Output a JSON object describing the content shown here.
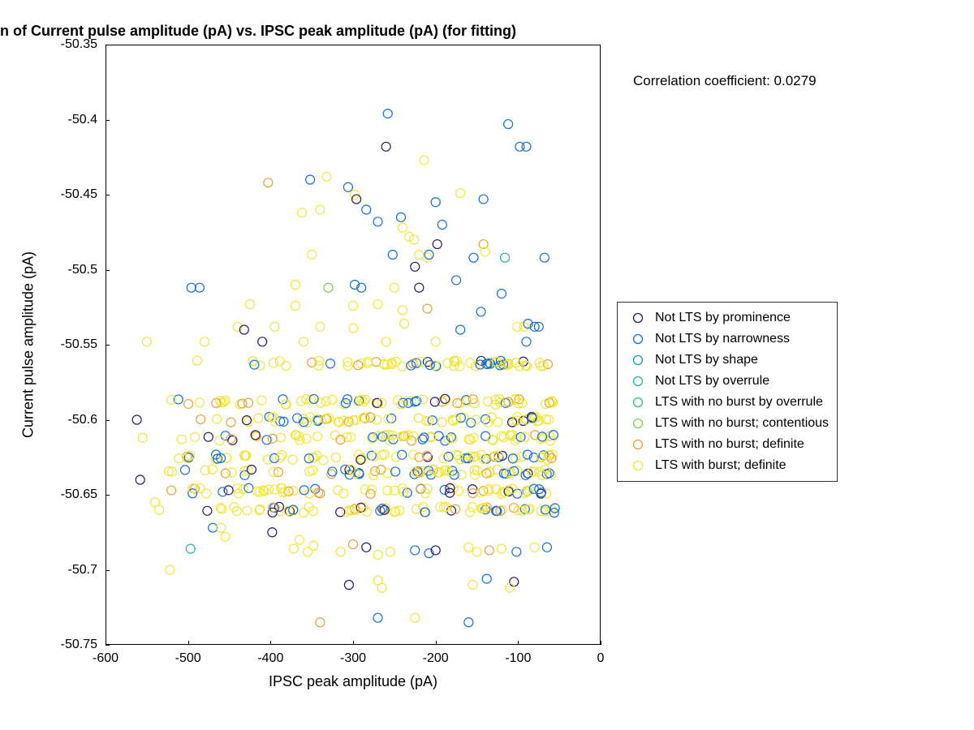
{
  "title": "n of Current pulse amplitude (pA) vs. IPSC peak amplitude (pA) (for fitting)",
  "corr_label": "Correlation coefficient: 0.0279",
  "xlabel": "IPSC peak amplitude (pA)",
  "ylabel": "Current pulse amplitude (pA)",
  "chart": {
    "type": "scatter",
    "background_color": "#ffffff",
    "marker_radius": 5.5,
    "marker_stroke_width": 1.2,
    "xlim": [
      -600,
      0
    ],
    "ylim": [
      -50.75,
      -50.35
    ],
    "xticks": [
      -600,
      -500,
      -400,
      -300,
      -200,
      -100,
      0
    ],
    "yticks": [
      -50.75,
      -50.7,
      -50.65,
      -50.6,
      -50.55,
      -50.5,
      -50.45,
      -50.4,
      -50.35
    ],
    "xtick_labels": [
      "-600",
      "-500",
      "-400",
      "-300",
      "-200",
      "-100",
      "0"
    ],
    "ytick_labels": [
      "-50.75",
      "-50.7",
      "-50.65",
      "-50.6",
      "-50.55",
      "-50.5",
      "-50.45",
      "-50.4",
      "-50.35"
    ],
    "tick_fontsize": 16,
    "label_fontsize": 18,
    "title_fontsize": 18
  },
  "series_colors": {
    "c1": "#2a1a6a",
    "c2": "#1670d6",
    "c3": "#1e9acb",
    "c4": "#1fb6b0",
    "c5": "#2fc27a",
    "c6": "#7fcf4a",
    "c7": "#e8a23a",
    "c8": "#f2e63a"
  },
  "legend": [
    {
      "key": "c1",
      "label": "Not LTS by prominence"
    },
    {
      "key": "c2",
      "label": "Not LTS by narrowness"
    },
    {
      "key": "c3",
      "label": "Not LTS by shape"
    },
    {
      "key": "c4",
      "label": "Not LTS by overrule"
    },
    {
      "key": "c5",
      "label": "LTS with no burst by overrule"
    },
    {
      "key": "c6",
      "label": "LTS with no burst; contentious"
    },
    {
      "key": "c7",
      "label": "LTS with no burst; definite"
    },
    {
      "key": "c8",
      "label": "LTS with burst; definite"
    }
  ],
  "bands_y": [
    -50.5625,
    -50.588,
    -50.6,
    -50.612,
    -50.625,
    -50.635,
    -50.6475,
    -50.66
  ],
  "band_jitter": 0.002,
  "band_xrange": [
    -530,
    -55
  ],
  "band_n_per_row": 70,
  "band_color_weights": {
    "c8": 0.62,
    "c2": 0.22,
    "c7": 0.1,
    "c1": 0.06
  },
  "sparse_points": [
    {
      "x": -258,
      "y": -50.396,
      "c": "c2"
    },
    {
      "x": -112,
      "y": -50.403,
      "c": "c2"
    },
    {
      "x": -260,
      "y": -50.418,
      "c": "c1"
    },
    {
      "x": -98,
      "y": -50.418,
      "c": "c2"
    },
    {
      "x": -90,
      "y": -50.418,
      "c": "c2"
    },
    {
      "x": -214,
      "y": -50.427,
      "c": "c8"
    },
    {
      "x": -403,
      "y": -50.442,
      "c": "c7"
    },
    {
      "x": -352,
      "y": -50.44,
      "c": "c2"
    },
    {
      "x": -332,
      "y": -50.438,
      "c": "c8"
    },
    {
      "x": -306,
      "y": -50.445,
      "c": "c2"
    },
    {
      "x": -298,
      "y": -50.45,
      "c": "c8"
    },
    {
      "x": -296,
      "y": -50.453,
      "c": "c1"
    },
    {
      "x": -200,
      "y": -50.455,
      "c": "c2"
    },
    {
      "x": -170,
      "y": -50.449,
      "c": "c8"
    },
    {
      "x": -142,
      "y": -50.453,
      "c": "c2"
    },
    {
      "x": -340,
      "y": -50.46,
      "c": "c8"
    },
    {
      "x": -362,
      "y": -50.462,
      "c": "c8"
    },
    {
      "x": -284,
      "y": -50.46,
      "c": "c2"
    },
    {
      "x": -270,
      "y": -50.468,
      "c": "c2"
    },
    {
      "x": -242,
      "y": -50.465,
      "c": "c2"
    },
    {
      "x": -240,
      "y": -50.472,
      "c": "c8"
    },
    {
      "x": -192,
      "y": -50.47,
      "c": "c2"
    },
    {
      "x": -232,
      "y": -50.478,
      "c": "c8"
    },
    {
      "x": -226,
      "y": -50.48,
      "c": "c8"
    },
    {
      "x": -198,
      "y": -50.483,
      "c": "c1"
    },
    {
      "x": -142,
      "y": -50.483,
      "c": "c7"
    },
    {
      "x": -350,
      "y": -50.49,
      "c": "c8"
    },
    {
      "x": -252,
      "y": -50.49,
      "c": "c2"
    },
    {
      "x": -220,
      "y": -50.49,
      "c": "c8"
    },
    {
      "x": -210,
      "y": -50.492,
      "c": "c8"
    },
    {
      "x": -208,
      "y": -50.49,
      "c": "c2"
    },
    {
      "x": -154,
      "y": -50.492,
      "c": "c2"
    },
    {
      "x": -140,
      "y": -50.488,
      "c": "c8"
    },
    {
      "x": -116,
      "y": -50.492,
      "c": "c4"
    },
    {
      "x": -68,
      "y": -50.492,
      "c": "c2"
    },
    {
      "x": -225,
      "y": -50.498,
      "c": "c1"
    },
    {
      "x": -496,
      "y": -50.512,
      "c": "c2"
    },
    {
      "x": -486,
      "y": -50.512,
      "c": "c2"
    },
    {
      "x": -370,
      "y": -50.51,
      "c": "c8"
    },
    {
      "x": -330,
      "y": -50.512,
      "c": "c6"
    },
    {
      "x": -298,
      "y": -50.51,
      "c": "c2"
    },
    {
      "x": -290,
      "y": -50.512,
      "c": "c2"
    },
    {
      "x": -250,
      "y": -50.512,
      "c": "c8"
    },
    {
      "x": -220,
      "y": -50.512,
      "c": "c1"
    },
    {
      "x": -175,
      "y": -50.507,
      "c": "c2"
    },
    {
      "x": -120,
      "y": -50.516,
      "c": "c2"
    },
    {
      "x": -425,
      "y": -50.523,
      "c": "c8"
    },
    {
      "x": -370,
      "y": -50.524,
      "c": "c8"
    },
    {
      "x": -300,
      "y": -50.524,
      "c": "c8"
    },
    {
      "x": -270,
      "y": -50.523,
      "c": "c8"
    },
    {
      "x": -240,
      "y": -50.527,
      "c": "c8"
    },
    {
      "x": -210,
      "y": -50.526,
      "c": "c7"
    },
    {
      "x": -145,
      "y": -50.528,
      "c": "c2"
    },
    {
      "x": -440,
      "y": -50.538,
      "c": "c8"
    },
    {
      "x": -432,
      "y": -50.54,
      "c": "c1"
    },
    {
      "x": -395,
      "y": -50.538,
      "c": "c8"
    },
    {
      "x": -340,
      "y": -50.538,
      "c": "c8"
    },
    {
      "x": -300,
      "y": -50.539,
      "c": "c8"
    },
    {
      "x": -238,
      "y": -50.536,
      "c": "c8"
    },
    {
      "x": -170,
      "y": -50.54,
      "c": "c2"
    },
    {
      "x": -101,
      "y": -50.538,
      "c": "c8"
    },
    {
      "x": -93,
      "y": -50.538,
      "c": "c8"
    },
    {
      "x": -88,
      "y": -50.536,
      "c": "c2"
    },
    {
      "x": -80,
      "y": -50.538,
      "c": "c2"
    },
    {
      "x": -75,
      "y": -50.538,
      "c": "c2"
    },
    {
      "x": -550,
      "y": -50.548,
      "c": "c8"
    },
    {
      "x": -480,
      "y": -50.548,
      "c": "c8"
    },
    {
      "x": -410,
      "y": -50.548,
      "c": "c1"
    },
    {
      "x": -360,
      "y": -50.548,
      "c": "c8"
    },
    {
      "x": -260,
      "y": -50.548,
      "c": "c8"
    },
    {
      "x": -200,
      "y": -50.548,
      "c": "c8"
    },
    {
      "x": -90,
      "y": -50.548,
      "c": "c2"
    },
    {
      "x": -562,
      "y": -50.6,
      "c": "c1"
    },
    {
      "x": -555,
      "y": -50.612,
      "c": "c8"
    },
    {
      "x": -558,
      "y": -50.64,
      "c": "c1"
    },
    {
      "x": -540,
      "y": -50.655,
      "c": "c8"
    },
    {
      "x": -535,
      "y": -50.66,
      "c": "c8"
    },
    {
      "x": -470,
      "y": -50.672,
      "c": "c2"
    },
    {
      "x": -460,
      "y": -50.672,
      "c": "c8"
    },
    {
      "x": -458,
      "y": -50.648,
      "c": "c2"
    },
    {
      "x": -455,
      "y": -50.678,
      "c": "c8"
    },
    {
      "x": -398,
      "y": -50.675,
      "c": "c1"
    },
    {
      "x": -372,
      "y": -50.686,
      "c": "c8"
    },
    {
      "x": -365,
      "y": -50.68,
      "c": "c8"
    },
    {
      "x": -355,
      "y": -50.688,
      "c": "c8"
    },
    {
      "x": -348,
      "y": -50.684,
      "c": "c8"
    },
    {
      "x": -315,
      "y": -50.688,
      "c": "c8"
    },
    {
      "x": -300,
      "y": -50.683,
      "c": "c7"
    },
    {
      "x": -284,
      "y": -50.685,
      "c": "c1"
    },
    {
      "x": -270,
      "y": -50.69,
      "c": "c8"
    },
    {
      "x": -255,
      "y": -50.688,
      "c": "c8"
    },
    {
      "x": -225,
      "y": -50.687,
      "c": "c2"
    },
    {
      "x": -208,
      "y": -50.689,
      "c": "c2"
    },
    {
      "x": -200,
      "y": -50.687,
      "c": "c1"
    },
    {
      "x": -160,
      "y": -50.685,
      "c": "c8"
    },
    {
      "x": -150,
      "y": -50.688,
      "c": "c8"
    },
    {
      "x": -135,
      "y": -50.687,
      "c": "c7"
    },
    {
      "x": -120,
      "y": -50.686,
      "c": "c8"
    },
    {
      "x": -102,
      "y": -50.688,
      "c": "c2"
    },
    {
      "x": -80,
      "y": -50.685,
      "c": "c8"
    },
    {
      "x": -65,
      "y": -50.685,
      "c": "c2"
    },
    {
      "x": -497,
      "y": -50.686,
      "c": "c4"
    },
    {
      "x": -522,
      "y": -50.7,
      "c": "c8"
    },
    {
      "x": -305,
      "y": -50.71,
      "c": "c1"
    },
    {
      "x": -270,
      "y": -50.707,
      "c": "c8"
    },
    {
      "x": -265,
      "y": -50.712,
      "c": "c8"
    },
    {
      "x": -155,
      "y": -50.71,
      "c": "c8"
    },
    {
      "x": -138,
      "y": -50.706,
      "c": "c2"
    },
    {
      "x": -105,
      "y": -50.708,
      "c": "c1"
    },
    {
      "x": -110,
      "y": -50.712,
      "c": "c8"
    },
    {
      "x": -340,
      "y": -50.735,
      "c": "c7"
    },
    {
      "x": -270,
      "y": -50.732,
      "c": "c2"
    },
    {
      "x": -225,
      "y": -50.732,
      "c": "c8"
    },
    {
      "x": -160,
      "y": -50.735,
      "c": "c2"
    }
  ]
}
